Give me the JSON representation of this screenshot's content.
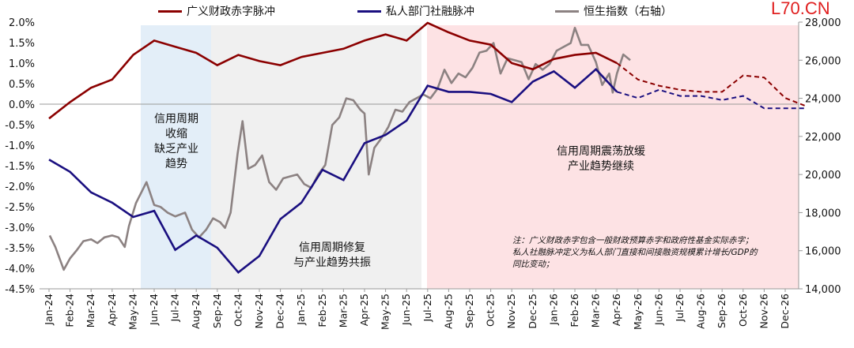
{
  "watermark": "L70.CN",
  "chart_data": {
    "type": "line",
    "legend": {
      "placement": "top",
      "entries": [
        "广义财政赤字脉冲",
        "私人部门社融脉冲",
        "恒生指数（右轴）"
      ]
    },
    "x_ticks": [
      "Jan-24",
      "Feb-24",
      "Mar-24",
      "Apr-24",
      "May-24",
      "Jun-24",
      "Jul-24",
      "Aug-24",
      "Sep-24",
      "Oct-24",
      "Nov-24",
      "Dec-24",
      "Jan-25",
      "Feb-25",
      "Mar-25",
      "Apr-25",
      "May-25",
      "Jun-25",
      "Jul-25",
      "Aug-25",
      "Sep-25",
      "Oct-25",
      "Nov-25",
      "Dec-25",
      "Jan-26",
      "Feb-26",
      "Mar-26",
      "Apr-26",
      "May-26",
      "Jun-26",
      "Jul-26",
      "Aug-26",
      "Sep-26",
      "Oct-26",
      "Nov-26",
      "Dec-26"
    ],
    "y_left": {
      "ticks": [
        "2.0%",
        "1.5%",
        "1.0%",
        "0.5%",
        "0.0%",
        "-0.5%",
        "-1.0%",
        "-1.5%",
        "-2.0%",
        "-2.5%",
        "-3.0%",
        "-3.5%",
        "-4.0%",
        "-4.5%"
      ],
      "range": [
        -4.5,
        2.0
      ]
    },
    "y_right": {
      "ticks": [
        "28,000",
        "26,000",
        "24,000",
        "22,000",
        "20,000",
        "18,000",
        "16,000",
        "14,000"
      ],
      "range": [
        14000,
        28000
      ]
    },
    "colors": {
      "fiscal": "#8b0000",
      "private": "#1a0f80",
      "hsi": "#8c8282",
      "contraction_band": "#e3eef8",
      "repair_band": "#f0f0f0",
      "volatile_band": "#fde2e4"
    },
    "series": [
      {
        "name": "广义财政赤字脉冲",
        "axis": "left",
        "unit": "%",
        "values": [
          -0.35,
          0.05,
          0.4,
          0.6,
          1.2,
          1.55,
          1.4,
          1.25,
          0.95,
          1.2,
          1.05,
          0.95,
          1.15,
          1.25,
          1.35,
          1.55,
          1.7,
          1.55,
          1.98,
          1.75,
          1.55,
          1.45,
          1.0,
          0.85,
          1.1,
          1.2,
          1.25,
          1.0
        ],
        "forecast": [
          1.0,
          0.6,
          0.45,
          0.35,
          0.3,
          0.3,
          0.7,
          0.65,
          0.15,
          -0.05
        ]
      },
      {
        "name": "私人部门社融脉冲",
        "axis": "left",
        "unit": "%",
        "values": [
          -1.35,
          -1.65,
          -2.15,
          -2.4,
          -2.75,
          -2.6,
          -3.55,
          -3.2,
          -3.5,
          -4.1,
          -3.7,
          -2.8,
          -2.4,
          -1.6,
          -1.85,
          -0.95,
          -0.75,
          -0.4,
          0.45,
          0.3,
          0.3,
          0.25,
          0.05,
          0.55,
          0.8,
          0.4,
          0.85,
          0.3
        ],
        "forecast": [
          0.3,
          0.15,
          0.35,
          0.2,
          0.2,
          0.1,
          0.2,
          -0.1,
          -0.1,
          -0.1
        ]
      },
      {
        "name": "恒生指数（右轴）",
        "axis": "right",
        "points": [
          [
            "2024-01-02",
            16800
          ],
          [
            "2024-01-10",
            16200
          ],
          [
            "2024-01-22",
            15000
          ],
          [
            "2024-02-01",
            15600
          ],
          [
            "2024-02-10",
            16000
          ],
          [
            "2024-02-20",
            16500
          ],
          [
            "2024-03-01",
            16600
          ],
          [
            "2024-03-10",
            16400
          ],
          [
            "2024-03-20",
            16700
          ],
          [
            "2024-04-01",
            16800
          ],
          [
            "2024-04-10",
            16700
          ],
          [
            "2024-04-19",
            16200
          ],
          [
            "2024-04-25",
            17300
          ],
          [
            "2024-05-05",
            18500
          ],
          [
            "2024-05-20",
            19600
          ],
          [
            "2024-06-01",
            18400
          ],
          [
            "2024-06-10",
            18300
          ],
          [
            "2024-06-20",
            18000
          ],
          [
            "2024-07-01",
            17800
          ],
          [
            "2024-07-15",
            18000
          ],
          [
            "2024-07-25",
            17100
          ],
          [
            "2024-08-05",
            16700
          ],
          [
            "2024-08-15",
            17100
          ],
          [
            "2024-08-25",
            17700
          ],
          [
            "2024-09-05",
            17500
          ],
          [
            "2024-09-12",
            17200
          ],
          [
            "2024-09-20",
            18000
          ],
          [
            "2024-09-30",
            21100
          ],
          [
            "2024-10-07",
            22800
          ],
          [
            "2024-10-15",
            20300
          ],
          [
            "2024-10-25",
            20500
          ],
          [
            "2024-11-05",
            21000
          ],
          [
            "2024-11-15",
            19600
          ],
          [
            "2024-11-25",
            19200
          ],
          [
            "2024-12-05",
            19800
          ],
          [
            "2024-12-15",
            19900
          ],
          [
            "2024-12-25",
            20000
          ],
          [
            "2025-01-05",
            19500
          ],
          [
            "2025-01-15",
            19300
          ],
          [
            "2025-01-25",
            20000
          ],
          [
            "2025-02-05",
            20500
          ],
          [
            "2025-02-15",
            22600
          ],
          [
            "2025-02-25",
            23000
          ],
          [
            "2025-03-05",
            24000
          ],
          [
            "2025-03-15",
            23900
          ],
          [
            "2025-03-25",
            23400
          ],
          [
            "2025-04-01",
            23200
          ],
          [
            "2025-04-07",
            20000
          ],
          [
            "2025-04-15",
            21400
          ],
          [
            "2025-04-25",
            21900
          ],
          [
            "2025-05-05",
            22500
          ],
          [
            "2025-05-15",
            23400
          ],
          [
            "2025-05-25",
            23300
          ],
          [
            "2025-06-05",
            23800
          ],
          [
            "2025-06-15",
            24000
          ],
          [
            "2025-06-25",
            24200
          ],
          [
            "2025-07-05",
            24000
          ],
          [
            "2025-07-15",
            24500
          ],
          [
            "2025-07-25",
            25500
          ],
          [
            "2025-08-05",
            24800
          ],
          [
            "2025-08-15",
            25300
          ],
          [
            "2025-08-25",
            25100
          ],
          [
            "2025-09-05",
            25600
          ],
          [
            "2025-09-15",
            26400
          ],
          [
            "2025-09-25",
            26500
          ],
          [
            "2025-10-05",
            26900
          ],
          [
            "2025-10-15",
            25300
          ],
          [
            "2025-10-25",
            26100
          ],
          [
            "2025-11-05",
            26000
          ],
          [
            "2025-11-15",
            25900
          ],
          [
            "2025-11-25",
            25000
          ],
          [
            "2025-12-05",
            25800
          ],
          [
            "2025-12-15",
            25500
          ],
          [
            "2025-12-25",
            25800
          ],
          [
            "2026-01-05",
            26500
          ],
          [
            "2026-01-15",
            26700
          ],
          [
            "2026-01-25",
            26900
          ],
          [
            "2026-02-01",
            27700
          ],
          [
            "2026-02-10",
            26800
          ],
          [
            "2026-02-20",
            26800
          ],
          [
            "2026-03-01",
            25900
          ],
          [
            "2026-03-10",
            24700
          ],
          [
            "2026-03-20",
            25300
          ],
          [
            "2026-03-25",
            24300
          ],
          [
            "2026-04-01",
            25300
          ],
          [
            "2026-04-10",
            26300
          ],
          [
            "2026-04-20",
            26000
          ]
        ]
      }
    ],
    "annotations": [
      {
        "text": "信用周期\n收缩\n缺乏产业\n趋势",
        "from": "Jun-24",
        "to": "Sep-24"
      },
      {
        "text": "信用周期修复\n与产业趋势共振",
        "from": "Sep-24",
        "to": "Jul-25"
      },
      {
        "text": "信用周期震荡放缓\n产业趋势继续",
        "from": "Jul-25",
        "to": "Dec-26"
      }
    ],
    "note": "注：广义财政赤字包含一般财政预算赤字和政府性基金实际赤字；\n私人社融脉冲定义为私人部门直接和间接融资规模累计增长/GDP的\n同比变动；"
  }
}
